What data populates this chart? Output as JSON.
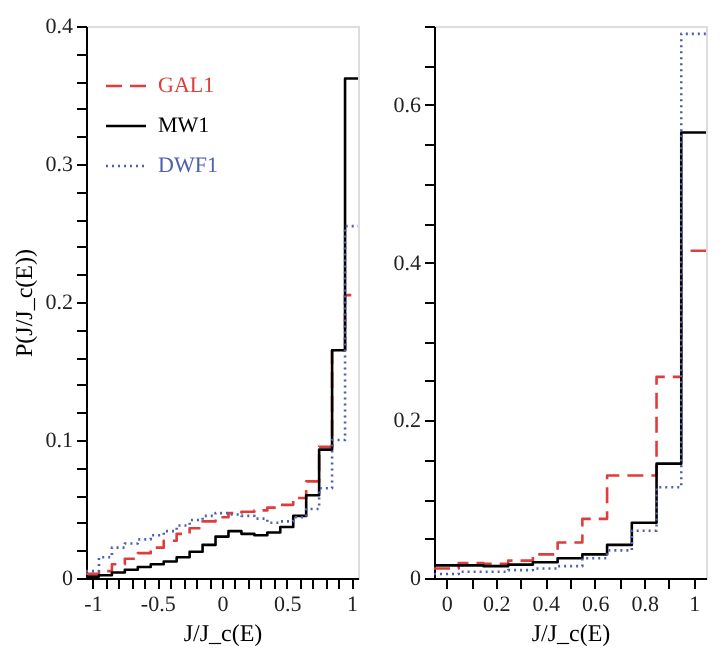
{
  "chart_data": [
    {
      "type": "histogram",
      "xlabel": "J/J_c(E)",
      "ylabel": "P(J/J_c(E))",
      "legend": "top left",
      "grid": false,
      "bins": [
        -1.05,
        -0.95,
        -0.85,
        -0.75,
        -0.65,
        -0.55,
        -0.45,
        -0.35,
        -0.25,
        -0.15,
        -0.05,
        0.05,
        0.15,
        0.25,
        0.35,
        0.45,
        0.55,
        0.65,
        0.75,
        0.85,
        0.95,
        1.05
      ],
      "xlim": [
        -1.05,
        1.05
      ],
      "xticks": [
        -1,
        {
          "value": -0.9,
          "label": null
        },
        {
          "value": -0.8,
          "label": null
        },
        {
          "value": -0.7,
          "label": null
        },
        {
          "value": -0.6,
          "label": null
        },
        -0.5,
        {
          "value": -0.4,
          "label": null
        },
        {
          "value": -0.3,
          "label": null
        },
        {
          "value": -0.2,
          "label": null
        },
        {
          "value": -0.1,
          "label": null
        },
        0,
        {
          "value": 0.1,
          "label": null
        },
        {
          "value": 0.2,
          "label": null
        },
        {
          "value": 0.3,
          "label": null
        },
        {
          "value": 0.4,
          "label": null
        },
        0.5,
        {
          "value": 0.6,
          "label": null
        },
        {
          "value": 0.7,
          "label": null
        },
        {
          "value": 0.8,
          "label": null
        },
        {
          "value": 0.9,
          "label": null
        },
        1
      ],
      "ylim": [
        0,
        0.4
      ],
      "yticks": [
        0,
        {
          "value": 0.02,
          "label": null
        },
        {
          "value": 0.04,
          "label": null
        },
        {
          "value": 0.06,
          "label": null
        },
        {
          "value": 0.08,
          "label": null
        },
        0.1,
        {
          "value": 0.12,
          "label": null
        },
        {
          "value": 0.14,
          "label": null
        },
        {
          "value": 0.16,
          "label": null
        },
        {
          "value": 0.18,
          "label": null
        },
        0.2,
        {
          "value": 0.22,
          "label": null
        },
        {
          "value": 0.24,
          "label": null
        },
        {
          "value": 0.26,
          "label": null
        },
        {
          "value": 0.28,
          "label": null
        },
        0.3,
        {
          "value": 0.32,
          "label": null
        },
        {
          "value": 0.34,
          "label": null
        },
        {
          "value": 0.36,
          "label": null
        },
        {
          "value": 0.38,
          "label": null
        },
        0.4
      ],
      "series": [
        {
          "name": "GAL1",
          "color": "#e03c3c",
          "line_style": "dashed",
          "values": [
            0.003,
            0.005,
            0.01,
            0.014,
            0.018,
            0.022,
            0.027,
            0.032,
            0.036,
            0.041,
            0.044,
            0.047,
            0.048,
            0.049,
            0.051,
            0.053,
            0.058,
            0.07,
            0.095,
            0.165,
            0.205
          ]
        },
        {
          "name": "MW1",
          "color": "#000000",
          "line_style": "solid",
          "values": [
            0.001,
            0.002,
            0.004,
            0.006,
            0.008,
            0.01,
            0.012,
            0.015,
            0.019,
            0.024,
            0.03,
            0.034,
            0.032,
            0.031,
            0.033,
            0.037,
            0.045,
            0.06,
            0.093,
            0.165,
            0.362
          ]
        },
        {
          "name": "DWF1",
          "color": "#5060b0",
          "line_style": "dotted",
          "values": [
            0.005,
            0.015,
            0.022,
            0.025,
            0.028,
            0.031,
            0.034,
            0.038,
            0.042,
            0.045,
            0.047,
            0.046,
            0.045,
            0.043,
            0.04,
            0.041,
            0.044,
            0.05,
            0.065,
            0.1,
            0.255
          ]
        }
      ]
    },
    {
      "type": "histogram",
      "xlabel": "J/J_c(E)",
      "grid": false,
      "bins": [
        -0.05,
        0.05,
        0.15,
        0.25,
        0.35,
        0.45,
        0.55,
        0.65,
        0.75,
        0.85,
        0.95,
        1.05
      ],
      "xlim": [
        -0.05,
        1.05
      ],
      "xticks": [
        0,
        {
          "value": 0.1,
          "label": null
        },
        0.2,
        {
          "value": 0.3,
          "label": null
        },
        0.4,
        {
          "value": 0.5,
          "label": null
        },
        0.6,
        {
          "value": 0.7,
          "label": null
        },
        0.8,
        {
          "value": 0.9,
          "label": null
        },
        1
      ],
      "ylim": [
        0,
        0.7
      ],
      "yticks": [
        0,
        {
          "value": 0.05,
          "label": null
        },
        {
          "value": 0.1,
          "label": null
        },
        {
          "value": 0.15,
          "label": null
        },
        0.2,
        {
          "value": 0.25,
          "label": null
        },
        {
          "value": 0.3,
          "label": null
        },
        {
          "value": 0.35,
          "label": null
        },
        0.4,
        {
          "value": 0.45,
          "label": null
        },
        {
          "value": 0.5,
          "label": null
        },
        {
          "value": 0.55,
          "label": null
        },
        0.6,
        {
          "value": 0.65,
          "label": null
        },
        {
          "value": 0.7,
          "label": null
        }
      ],
      "series": [
        {
          "color": "#e03c3c",
          "line_style": "dashed",
          "values": [
            0.012,
            0.019,
            0.018,
            0.022,
            0.03,
            0.045,
            0.075,
            0.13,
            0.13,
            0.255,
            0.415
          ]
        },
        {
          "color": "#000000",
          "line_style": "solid",
          "values": [
            0.016,
            0.016,
            0.015,
            0.017,
            0.02,
            0.025,
            0.03,
            0.042,
            0.07,
            0.145,
            0.565
          ]
        },
        {
          "color": "#5060b0",
          "line_style": "dotted",
          "values": [
            0.005,
            0.008,
            0.008,
            0.01,
            0.012,
            0.015,
            0.025,
            0.035,
            0.06,
            0.115,
            0.69
          ]
        }
      ]
    }
  ]
}
